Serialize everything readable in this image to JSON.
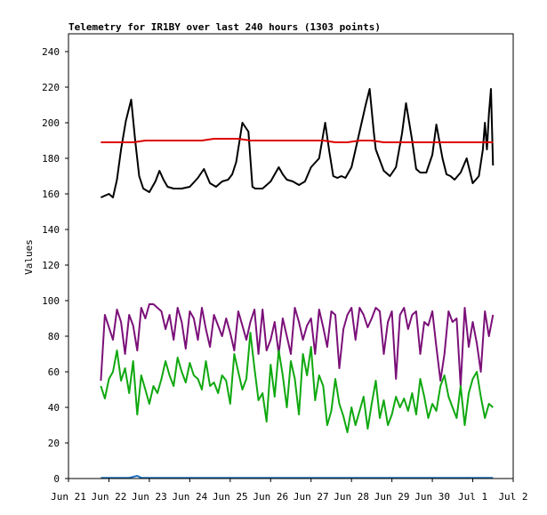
{
  "chart_data": {
    "type": "line",
    "title": "Telemetry for IR1BY over last 240 hours (1303 points)",
    "ylabel": "Values",
    "xlabel": "",
    "ylim": [
      0,
      250
    ],
    "yticks": [
      0,
      20,
      40,
      60,
      80,
      100,
      120,
      140,
      160,
      180,
      200,
      220,
      240
    ],
    "xlim": [
      0,
      11
    ],
    "xticks": [
      {
        "v": 0,
        "label": "Jun 21"
      },
      {
        "v": 1,
        "label": "Jun 22"
      },
      {
        "v": 2,
        "label": "Jun 23"
      },
      {
        "v": 3,
        "label": "Jun 24"
      },
      {
        "v": 4,
        "label": "Jun 25"
      },
      {
        "v": 5,
        "label": "Jun 26"
      },
      {
        "v": 6,
        "label": "Jun 27"
      },
      {
        "v": 7,
        "label": "Jun 28"
      },
      {
        "v": 8,
        "label": "Jun 29"
      },
      {
        "v": 9,
        "label": "Jun 30"
      },
      {
        "v": 10,
        "label": "Jul 1"
      },
      {
        "v": 11,
        "label": "Jul 2"
      }
    ],
    "grid": false,
    "series": [
      {
        "color": "#000000",
        "x": [
          0.8,
          0.9,
          1.0,
          1.1,
          1.2,
          1.3,
          1.42,
          1.55,
          1.65,
          1.75,
          1.85,
          2.0,
          2.15,
          2.25,
          2.35,
          2.45,
          2.6,
          2.8,
          3.0,
          3.2,
          3.35,
          3.5,
          3.65,
          3.8,
          3.95,
          4.05,
          4.15,
          4.3,
          4.45,
          4.55,
          4.62,
          4.7,
          4.8,
          5.0,
          5.2,
          5.3,
          5.4,
          5.55,
          5.7,
          5.85,
          6.0,
          6.2,
          6.35,
          6.45,
          6.55,
          6.65,
          6.75,
          6.85,
          7.0,
          7.2,
          7.35,
          7.45,
          7.55,
          7.6,
          7.7,
          7.8,
          7.95,
          8.1,
          8.25,
          8.35,
          8.5,
          8.6,
          8.7,
          8.85,
          9.0,
          9.1,
          9.25,
          9.35,
          9.45,
          9.55,
          9.7,
          9.85,
          10.0,
          10.15,
          10.25,
          10.3,
          10.35,
          10.4,
          10.45,
          10.5
        ],
        "values": [
          158,
          159,
          160,
          158,
          168,
          185,
          201,
          213,
          190,
          170,
          163,
          161,
          167,
          173,
          168,
          164,
          163,
          163,
          164,
          169,
          174,
          166,
          164,
          167,
          168,
          171,
          178,
          200,
          195,
          164,
          163,
          163,
          163,
          167,
          175,
          171,
          168,
          167,
          165,
          167,
          175,
          180,
          200,
          184,
          170,
          169,
          170,
          169,
          175,
          195,
          210,
          219,
          195,
          185,
          179,
          173,
          170,
          175,
          194,
          211,
          190,
          174,
          172,
          172,
          182,
          199,
          180,
          171,
          170,
          168,
          172,
          180,
          166,
          170,
          185,
          200,
          185,
          205,
          219,
          176
        ]
      },
      {
        "color": "#dd0000",
        "x": [
          0.8,
          1.0,
          1.3,
          1.6,
          1.9,
          2.2,
          2.5,
          2.8,
          3.0,
          3.3,
          3.6,
          3.9,
          4.2,
          4.5,
          4.8,
          5.1,
          5.4,
          5.7,
          6.0,
          6.3,
          6.6,
          6.9,
          7.2,
          7.5,
          7.8,
          8.1,
          8.4,
          8.7,
          9.0,
          9.3,
          9.6,
          9.9,
          10.2,
          10.5
        ],
        "values": [
          189,
          189,
          189,
          189,
          190,
          190,
          190,
          190,
          190,
          190,
          191,
          191,
          191,
          190,
          190,
          190,
          190,
          190,
          190,
          190,
          189,
          189,
          190,
          190,
          189,
          189,
          189,
          189,
          189,
          189,
          189,
          189,
          189,
          189
        ]
      },
      {
        "color": "#7b1079",
        "x": [
          0.8,
          0.9,
          1.0,
          1.1,
          1.2,
          1.3,
          1.4,
          1.5,
          1.6,
          1.7,
          1.8,
          1.9,
          2.0,
          2.1,
          2.2,
          2.3,
          2.4,
          2.5,
          2.6,
          2.7,
          2.8,
          2.9,
          3.0,
          3.1,
          3.2,
          3.3,
          3.4,
          3.5,
          3.6,
          3.7,
          3.8,
          3.9,
          4.0,
          4.1,
          4.2,
          4.3,
          4.4,
          4.5,
          4.6,
          4.7,
          4.8,
          4.9,
          5.0,
          5.1,
          5.2,
          5.3,
          5.4,
          5.5,
          5.6,
          5.7,
          5.8,
          5.9,
          6.0,
          6.1,
          6.2,
          6.3,
          6.4,
          6.5,
          6.6,
          6.7,
          6.8,
          6.9,
          7.0,
          7.1,
          7.2,
          7.3,
          7.4,
          7.5,
          7.6,
          7.7,
          7.8,
          7.9,
          8.0,
          8.1,
          8.2,
          8.3,
          8.4,
          8.5,
          8.6,
          8.7,
          8.8,
          8.9,
          9.0,
          9.1,
          9.2,
          9.3,
          9.4,
          9.5,
          9.6,
          9.7,
          9.8,
          9.9,
          10.0,
          10.1,
          10.2,
          10.3,
          10.4,
          10.5
        ],
        "values": [
          55,
          92,
          85,
          78,
          95,
          88,
          70,
          92,
          86,
          72,
          96,
          90,
          98,
          98,
          96,
          94,
          84,
          92,
          78,
          96,
          88,
          73,
          94,
          90,
          78,
          96,
          84,
          74,
          92,
          86,
          80,
          90,
          82,
          72,
          94,
          86,
          78,
          88,
          95,
          70,
          95,
          72,
          78,
          88,
          70,
          90,
          80,
          70,
          96,
          88,
          78,
          86,
          90,
          70,
          95,
          85,
          74,
          94,
          92,
          62,
          84,
          92,
          96,
          78,
          96,
          92,
          85,
          90,
          96,
          94,
          70,
          88,
          94,
          56,
          92,
          96,
          84,
          92,
          94,
          70,
          88,
          86,
          94,
          74,
          55,
          70,
          94,
          88,
          90,
          52,
          96,
          74,
          88,
          76,
          60,
          94,
          80,
          92
        ]
      },
      {
        "color": "#10a810",
        "x": [
          0.8,
          0.9,
          1.0,
          1.1,
          1.2,
          1.3,
          1.4,
          1.5,
          1.6,
          1.7,
          1.8,
          1.9,
          2.0,
          2.1,
          2.2,
          2.3,
          2.4,
          2.5,
          2.6,
          2.7,
          2.8,
          2.9,
          3.0,
          3.1,
          3.2,
          3.3,
          3.4,
          3.5,
          3.6,
          3.7,
          3.8,
          3.9,
          4.0,
          4.1,
          4.2,
          4.3,
          4.4,
          4.5,
          4.6,
          4.7,
          4.8,
          4.9,
          5.0,
          5.1,
          5.2,
          5.3,
          5.4,
          5.5,
          5.6,
          5.7,
          5.8,
          5.9,
          6.0,
          6.1,
          6.2,
          6.3,
          6.4,
          6.5,
          6.6,
          6.7,
          6.8,
          6.9,
          7.0,
          7.1,
          7.2,
          7.3,
          7.4,
          7.5,
          7.6,
          7.7,
          7.8,
          7.9,
          8.0,
          8.1,
          8.2,
          8.3,
          8.4,
          8.5,
          8.6,
          8.7,
          8.8,
          8.9,
          9.0,
          9.1,
          9.2,
          9.3,
          9.4,
          9.5,
          9.6,
          9.7,
          9.8,
          9.9,
          10.0,
          10.1,
          10.2,
          10.3,
          10.4,
          10.5
        ],
        "values": [
          52,
          45,
          56,
          60,
          72,
          55,
          62,
          48,
          66,
          36,
          58,
          50,
          42,
          52,
          48,
          56,
          66,
          58,
          52,
          68,
          60,
          54,
          65,
          58,
          56,
          50,
          66,
          52,
          54,
          48,
          58,
          55,
          42,
          70,
          60,
          50,
          56,
          82,
          62,
          44,
          48,
          32,
          64,
          46,
          72,
          58,
          40,
          66,
          56,
          36,
          70,
          58,
          74,
          44,
          58,
          52,
          30,
          38,
          56,
          42,
          35,
          26,
          40,
          30,
          38,
          46,
          28,
          42,
          55,
          34,
          44,
          30,
          36,
          46,
          40,
          45,
          38,
          48,
          36,
          56,
          46,
          34,
          42,
          38,
          52,
          58,
          46,
          40,
          34,
          52,
          30,
          48,
          56,
          60,
          46,
          34,
          42,
          40
        ]
      },
      {
        "color": "#1f6fbf",
        "x": [
          0.8,
          1.5,
          1.7,
          1.8,
          2.5,
          3.5,
          4.5,
          5.5,
          6.5,
          7.5,
          8.5,
          9.5,
          10.5
        ],
        "values": [
          0.4,
          0.4,
          1.5,
          0.4,
          0.4,
          0.4,
          0.4,
          0.4,
          0.4,
          0.4,
          0.4,
          0.4,
          0.4
        ]
      }
    ]
  }
}
